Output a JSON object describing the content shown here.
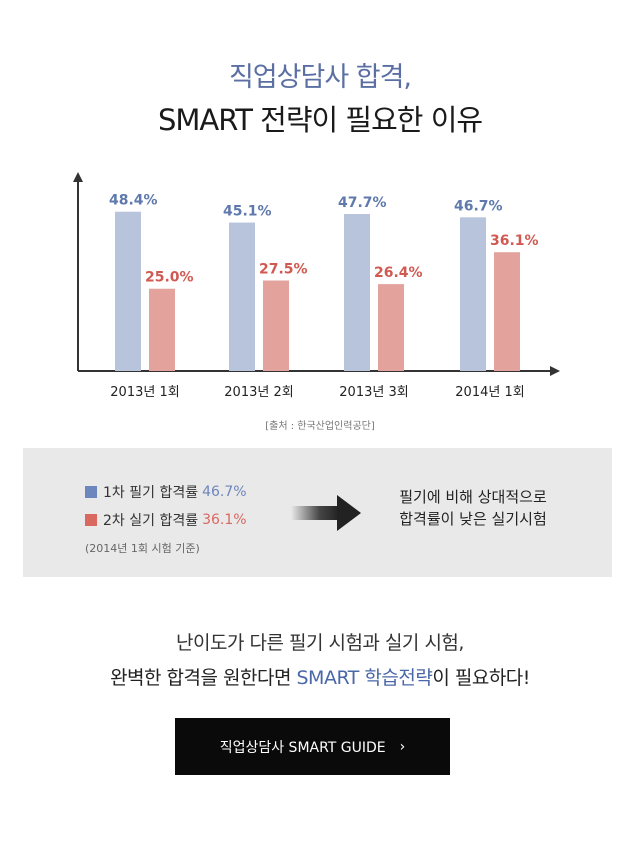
{
  "header": {
    "title_line1": "직업상담사 합격,",
    "title_line2": "SMART 전략이 필요한 이유"
  },
  "chart_data": {
    "type": "bar",
    "categories": [
      "2013년 1회",
      "2013년 2회",
      "2013년 3회",
      "2014년 1회"
    ],
    "series": [
      {
        "name": "1차 필기 합격률",
        "values": [
          48.4,
          45.1,
          47.7,
          46.7
        ],
        "color": "#b8c3dc",
        "label_color": "#5f79ad"
      },
      {
        "name": "2차 실기 합격률",
        "values": [
          25.0,
          27.5,
          26.4,
          36.1
        ],
        "color": "#e3a39c",
        "label_color": "#d05a52"
      }
    ],
    "data_labels": [
      [
        "48.4%",
        "45.1%",
        "47.7%",
        "46.7%"
      ],
      [
        "25.0%",
        "27.5%",
        "26.4%",
        "36.1%"
      ]
    ],
    "ylim": [
      0,
      55
    ],
    "grid": false,
    "source": "[출처 : 한국산업인력공단]"
  },
  "summary": {
    "legend": [
      {
        "label": "1차 필기 합격률",
        "value": "46.7%",
        "color": "#6d86bd"
      },
      {
        "label": "2차 실기 합격률",
        "value": "36.1%",
        "color": "#d9695f"
      }
    ],
    "note": "(2014년 1회 시험 기준)",
    "arrow_icon": "arrow-right-icon",
    "conclusion_line1": "필기에 비해 상대적으로",
    "conclusion_line2": "합격률이 낮은 실기시험"
  },
  "bottom": {
    "line1": "난이도가 다른 필기 시험과 실기 시험,",
    "line2_prefix": "완벽한 합격을 원한다면 ",
    "line2_highlight": "SMART 학습전략",
    "line2_suffix": "이 필요하다!"
  },
  "button": {
    "label": "직업상담사 SMART GUIDE",
    "chevron": "›"
  }
}
